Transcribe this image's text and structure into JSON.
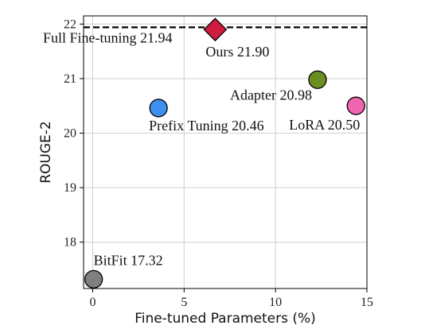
{
  "chart_data": {
    "type": "scatter",
    "xlabel": "Fine-tuned Parameters (%)",
    "ylabel": "ROUGE-2",
    "xlim": [
      -0.5,
      15
    ],
    "ylim": [
      17.15,
      22.15
    ],
    "xticks": [
      "0",
      "5",
      "10",
      "15"
    ],
    "yticks": [
      "18",
      "19",
      "20",
      "21",
      "22"
    ],
    "grid": true,
    "points": [
      {
        "label": "BitFit 17.32",
        "x": 0.05,
        "y": 17.32,
        "color": "#808080",
        "marker": "circle"
      },
      {
        "label": "Prefix Tuning 20.46",
        "x": 3.6,
        "y": 20.46,
        "color": "#3d8ff0",
        "marker": "circle"
      },
      {
        "label": "Adapter 20.98",
        "x": 12.3,
        "y": 20.98,
        "color": "#6b8e23",
        "marker": "circle"
      },
      {
        "label": "LoRA 20.50",
        "x": 14.4,
        "y": 20.5,
        "color": "#f065b0",
        "marker": "circle"
      },
      {
        "label": "Ours 21.90",
        "x": 6.7,
        "y": 21.9,
        "color": "#d01c3c",
        "marker": "diamond"
      }
    ],
    "reference_line": {
      "label": "Full Fine-tuning 21.94",
      "y": 21.94,
      "style": "dashed"
    }
  }
}
